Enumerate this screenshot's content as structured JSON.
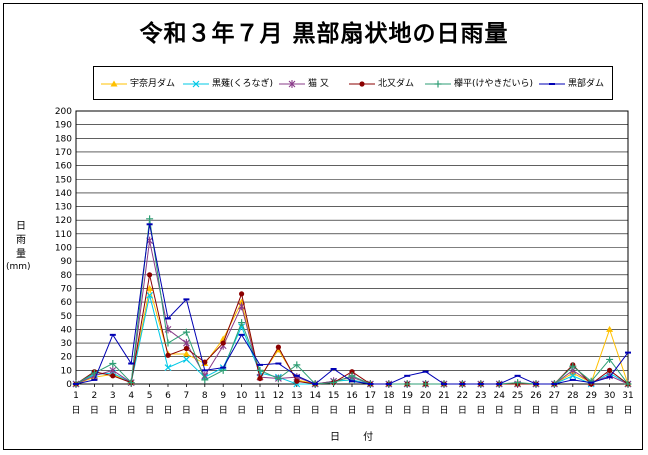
{
  "chart_data": {
    "type": "line",
    "title": "令和３年７月 黒部扇状地の日雨量",
    "ylabel": "日雨量",
    "yunit": "(mm)",
    "xlabel": "日 付",
    "ylim": [
      0,
      200
    ],
    "ystep": 10,
    "grid": "horizontal",
    "legend_position": "top",
    "x": [
      1,
      2,
      3,
      4,
      5,
      6,
      7,
      8,
      9,
      10,
      11,
      12,
      13,
      14,
      15,
      16,
      17,
      18,
      19,
      20,
      21,
      22,
      23,
      24,
      25,
      26,
      27,
      28,
      29,
      30,
      31
    ],
    "x_suffix": "日",
    "series": [
      {
        "name": "宇奈月ダム",
        "color": "#ffc000",
        "marker": "triangle",
        "values": [
          0,
          5,
          7,
          1,
          70,
          22,
          22,
          15,
          33,
          60,
          5,
          25,
          3,
          0,
          2,
          3,
          0,
          0,
          0,
          0,
          0,
          0,
          0,
          0,
          0,
          0,
          0,
          8,
          1,
          40,
          0
        ]
      },
      {
        "name": "黒薙(くろなぎ)",
        "color": "#00c8e6",
        "marker": "x",
        "values": [
          0,
          7,
          8,
          1,
          65,
          12,
          18,
          5,
          12,
          42,
          8,
          5,
          0,
          0,
          2,
          3,
          0,
          0,
          0,
          0,
          0,
          0,
          0,
          0,
          0,
          0,
          0,
          6,
          0,
          8,
          0
        ]
      },
      {
        "name": "猫 又",
        "color": "#8a3c8a",
        "marker": "star",
        "values": [
          0,
          6,
          10,
          1,
          105,
          40,
          30,
          6,
          28,
          57,
          5,
          4,
          5,
          0,
          2,
          5,
          0,
          0,
          0,
          0,
          0,
          0,
          0,
          0,
          0,
          0,
          0,
          10,
          1,
          6,
          0
        ]
      },
      {
        "name": "北又ダム",
        "color": "#8b0000",
        "marker": "dot",
        "values": [
          0,
          9,
          6,
          1,
          80,
          21,
          26,
          16,
          30,
          66,
          4,
          27,
          2,
          0,
          1,
          9,
          0,
          0,
          0,
          0,
          0,
          0,
          0,
          0,
          0,
          0,
          0,
          14,
          0,
          10,
          0
        ]
      },
      {
        "name": "欅平(けやきだいら)",
        "color": "#2e9e74",
        "marker": "plus",
        "values": [
          0,
          8,
          15,
          1,
          121,
          30,
          38,
          3,
          10,
          45,
          10,
          4,
          14,
          0,
          1,
          6,
          0,
          0,
          0,
          0,
          0,
          0,
          0,
          0,
          1,
          0,
          0,
          13,
          2,
          18,
          0
        ]
      },
      {
        "name": "黒部ダム",
        "color": "#0000b4",
        "marker": "dash",
        "values": [
          0,
          3,
          36,
          15,
          117,
          48,
          62,
          10,
          12,
          36,
          14,
          15,
          6,
          0,
          11,
          2,
          0,
          0,
          6,
          9,
          0,
          0,
          0,
          0,
          6,
          0,
          0,
          3,
          1,
          5,
          23
        ]
      }
    ]
  }
}
